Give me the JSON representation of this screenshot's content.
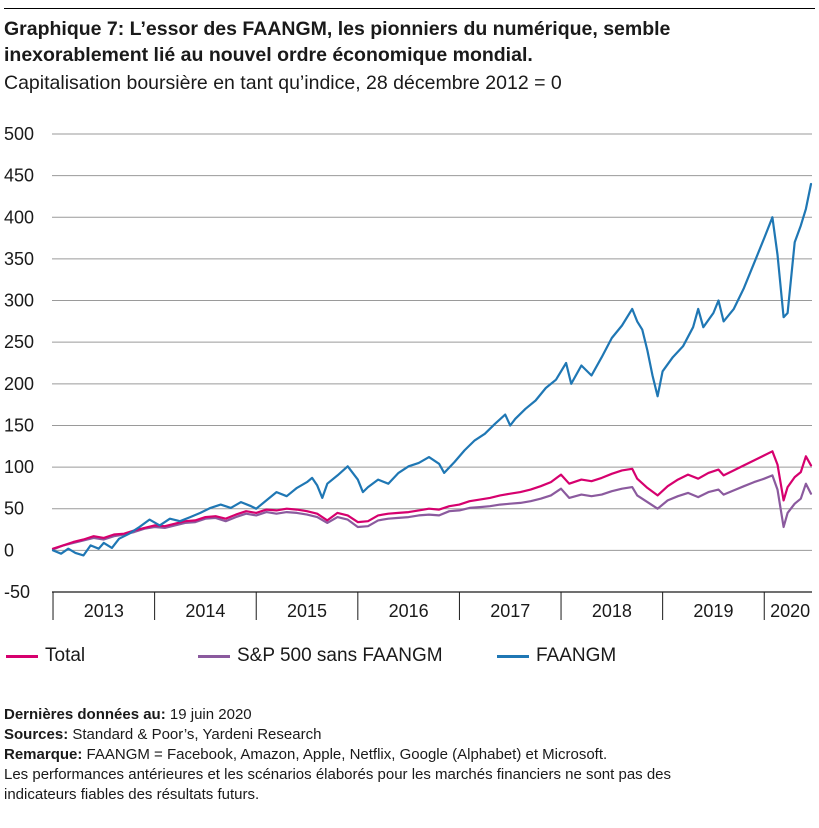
{
  "title": "Graphique 7: L’essor des FAANGM, les pionniers du numérique, semble inexorablement lié au nouvel ordre économique mondial.",
  "subtitle": "Capitalisation boursière en tant qu’indice, 28 décembre 2012 = 0",
  "notes": {
    "last_data_label": "Dernières données au:",
    "last_data_value": " 19 juin 2020",
    "sources_label": "Sources:",
    "sources_value": " Standard & Poor’s, Yardeni Research",
    "remark_label": "Remarque:",
    "remark_value": " FAANGM = Facebook, Amazon, Apple, Netflix, Google (Alphabet) et Microsoft.",
    "disclaimer_line1": "Les performances antérieures et les scénarios élaborés pour les marchés financiers ne sont pas des",
    "disclaimer_line2": "indicateurs fiables des résultats futurs."
  },
  "chart_data": {
    "type": "line",
    "x_unit": "year",
    "x_range": [
      2012.99,
      2020.47
    ],
    "ylim": [
      -50,
      500
    ],
    "yticks": [
      "-50",
      "0",
      "50",
      "100",
      "150",
      "200",
      "250",
      "300",
      "350",
      "400",
      "450",
      "500"
    ],
    "xticks": [
      "2013",
      "2014",
      "2015",
      "2016",
      "2017",
      "2018",
      "2019",
      "2020"
    ],
    "grid": true,
    "legend_position": "bottom",
    "series": [
      {
        "name": "Total",
        "color": "#d6006e",
        "points": [
          [
            2013.0,
            2
          ],
          [
            2013.1,
            6
          ],
          [
            2013.2,
            10
          ],
          [
            2013.3,
            13
          ],
          [
            2013.4,
            17
          ],
          [
            2013.5,
            15
          ],
          [
            2013.6,
            19
          ],
          [
            2013.7,
            20
          ],
          [
            2013.8,
            24
          ],
          [
            2013.9,
            27
          ],
          [
            2014.0,
            30
          ],
          [
            2014.1,
            29
          ],
          [
            2014.2,
            32
          ],
          [
            2014.3,
            35
          ],
          [
            2014.4,
            36
          ],
          [
            2014.5,
            40
          ],
          [
            2014.6,
            41
          ],
          [
            2014.7,
            38
          ],
          [
            2014.8,
            43
          ],
          [
            2014.9,
            47
          ],
          [
            2015.0,
            45
          ],
          [
            2015.1,
            49
          ],
          [
            2015.2,
            48
          ],
          [
            2015.3,
            50
          ],
          [
            2015.4,
            49
          ],
          [
            2015.5,
            47
          ],
          [
            2015.6,
            44
          ],
          [
            2015.7,
            36
          ],
          [
            2015.8,
            45
          ],
          [
            2015.9,
            42
          ],
          [
            2016.0,
            34
          ],
          [
            2016.1,
            35
          ],
          [
            2016.2,
            42
          ],
          [
            2016.3,
            44
          ],
          [
            2016.4,
            45
          ],
          [
            2016.5,
            46
          ],
          [
            2016.6,
            48
          ],
          [
            2016.7,
            50
          ],
          [
            2016.8,
            49
          ],
          [
            2016.9,
            53
          ],
          [
            2017.0,
            55
          ],
          [
            2017.1,
            59
          ],
          [
            2017.2,
            61
          ],
          [
            2017.3,
            63
          ],
          [
            2017.4,
            66
          ],
          [
            2017.5,
            68
          ],
          [
            2017.6,
            70
          ],
          [
            2017.7,
            73
          ],
          [
            2017.8,
            77
          ],
          [
            2017.9,
            82
          ],
          [
            2018.0,
            91
          ],
          [
            2018.08,
            80
          ],
          [
            2018.2,
            85
          ],
          [
            2018.3,
            83
          ],
          [
            2018.4,
            87
          ],
          [
            2018.5,
            92
          ],
          [
            2018.6,
            96
          ],
          [
            2018.7,
            98
          ],
          [
            2018.75,
            86
          ],
          [
            2018.85,
            75
          ],
          [
            2018.95,
            66
          ],
          [
            2019.05,
            77
          ],
          [
            2019.15,
            85
          ],
          [
            2019.25,
            91
          ],
          [
            2019.35,
            86
          ],
          [
            2019.45,
            93
          ],
          [
            2019.55,
            97
          ],
          [
            2019.6,
            90
          ],
          [
            2019.7,
            96
          ],
          [
            2019.8,
            102
          ],
          [
            2019.9,
            108
          ],
          [
            2020.0,
            114
          ],
          [
            2020.08,
            119
          ],
          [
            2020.13,
            103
          ],
          [
            2020.19,
            60
          ],
          [
            2020.23,
            76
          ],
          [
            2020.3,
            88
          ],
          [
            2020.36,
            94
          ],
          [
            2020.41,
            113
          ],
          [
            2020.46,
            102
          ]
        ]
      },
      {
        "name": "S&P 500 sans FAANGM",
        "color": "#8b5a9e",
        "points": [
          [
            2013.0,
            1
          ],
          [
            2013.1,
            6
          ],
          [
            2013.2,
            9
          ],
          [
            2013.3,
            12
          ],
          [
            2013.4,
            15
          ],
          [
            2013.5,
            13
          ],
          [
            2013.6,
            17
          ],
          [
            2013.7,
            19
          ],
          [
            2013.8,
            22
          ],
          [
            2013.9,
            26
          ],
          [
            2014.0,
            28
          ],
          [
            2014.1,
            27
          ],
          [
            2014.2,
            30
          ],
          [
            2014.3,
            33
          ],
          [
            2014.4,
            34
          ],
          [
            2014.5,
            38
          ],
          [
            2014.6,
            39
          ],
          [
            2014.7,
            35
          ],
          [
            2014.8,
            40
          ],
          [
            2014.9,
            44
          ],
          [
            2015.0,
            42
          ],
          [
            2015.1,
            46
          ],
          [
            2015.2,
            44
          ],
          [
            2015.3,
            46
          ],
          [
            2015.4,
            45
          ],
          [
            2015.5,
            43
          ],
          [
            2015.6,
            40
          ],
          [
            2015.7,
            33
          ],
          [
            2015.8,
            40
          ],
          [
            2015.9,
            37
          ],
          [
            2016.0,
            28
          ],
          [
            2016.1,
            29
          ],
          [
            2016.2,
            36
          ],
          [
            2016.3,
            38
          ],
          [
            2016.4,
            39
          ],
          [
            2016.5,
            40
          ],
          [
            2016.6,
            42
          ],
          [
            2016.7,
            43
          ],
          [
            2016.8,
            42
          ],
          [
            2016.9,
            47
          ],
          [
            2017.0,
            48
          ],
          [
            2017.1,
            51
          ],
          [
            2017.2,
            52
          ],
          [
            2017.3,
            53
          ],
          [
            2017.4,
            55
          ],
          [
            2017.5,
            56
          ],
          [
            2017.6,
            57
          ],
          [
            2017.7,
            59
          ],
          [
            2017.8,
            62
          ],
          [
            2017.9,
            66
          ],
          [
            2018.0,
            74
          ],
          [
            2018.08,
            63
          ],
          [
            2018.2,
            67
          ],
          [
            2018.3,
            65
          ],
          [
            2018.4,
            67
          ],
          [
            2018.5,
            71
          ],
          [
            2018.6,
            74
          ],
          [
            2018.7,
            76
          ],
          [
            2018.75,
            66
          ],
          [
            2018.85,
            58
          ],
          [
            2018.95,
            50
          ],
          [
            2019.05,
            60
          ],
          [
            2019.15,
            65
          ],
          [
            2019.25,
            69
          ],
          [
            2019.35,
            64
          ],
          [
            2019.45,
            70
          ],
          [
            2019.55,
            73
          ],
          [
            2019.6,
            67
          ],
          [
            2019.7,
            72
          ],
          [
            2019.8,
            77
          ],
          [
            2019.9,
            82
          ],
          [
            2020.0,
            86
          ],
          [
            2020.08,
            90
          ],
          [
            2020.13,
            73
          ],
          [
            2020.19,
            28
          ],
          [
            2020.23,
            45
          ],
          [
            2020.3,
            56
          ],
          [
            2020.36,
            62
          ],
          [
            2020.41,
            80
          ],
          [
            2020.46,
            68
          ]
        ]
      },
      {
        "name": "FAANGM",
        "color": "#1f77b4",
        "points": [
          [
            2013.0,
            0
          ],
          [
            2013.08,
            -4
          ],
          [
            2013.15,
            2
          ],
          [
            2013.22,
            -3
          ],
          [
            2013.3,
            -6
          ],
          [
            2013.37,
            6
          ],
          [
            2013.45,
            2
          ],
          [
            2013.5,
            9
          ],
          [
            2013.58,
            3
          ],
          [
            2013.65,
            14
          ],
          [
            2013.75,
            20
          ],
          [
            2013.85,
            28
          ],
          [
            2013.95,
            37
          ],
          [
            2014.05,
            30
          ],
          [
            2014.15,
            38
          ],
          [
            2014.25,
            35
          ],
          [
            2014.35,
            40
          ],
          [
            2014.45,
            45
          ],
          [
            2014.55,
            51
          ],
          [
            2014.65,
            55
          ],
          [
            2014.75,
            51
          ],
          [
            2014.85,
            58
          ],
          [
            2014.95,
            53
          ],
          [
            2015.0,
            50
          ],
          [
            2015.1,
            60
          ],
          [
            2015.2,
            70
          ],
          [
            2015.3,
            65
          ],
          [
            2015.4,
            75
          ],
          [
            2015.5,
            82
          ],
          [
            2015.55,
            87
          ],
          [
            2015.6,
            78
          ],
          [
            2015.65,
            63
          ],
          [
            2015.7,
            80
          ],
          [
            2015.8,
            90
          ],
          [
            2015.9,
            101
          ],
          [
            2016.0,
            85
          ],
          [
            2016.05,
            70
          ],
          [
            2016.1,
            76
          ],
          [
            2016.2,
            85
          ],
          [
            2016.3,
            80
          ],
          [
            2016.4,
            93
          ],
          [
            2016.5,
            101
          ],
          [
            2016.6,
            105
          ],
          [
            2016.7,
            112
          ],
          [
            2016.8,
            104
          ],
          [
            2016.85,
            93
          ],
          [
            2016.95,
            106
          ],
          [
            2017.05,
            120
          ],
          [
            2017.15,
            132
          ],
          [
            2017.25,
            140
          ],
          [
            2017.35,
            152
          ],
          [
            2017.45,
            163
          ],
          [
            2017.5,
            150
          ],
          [
            2017.55,
            158
          ],
          [
            2017.65,
            170
          ],
          [
            2017.75,
            180
          ],
          [
            2017.85,
            195
          ],
          [
            2017.95,
            205
          ],
          [
            2018.05,
            225
          ],
          [
            2018.1,
            200
          ],
          [
            2018.2,
            222
          ],
          [
            2018.3,
            210
          ],
          [
            2018.4,
            232
          ],
          [
            2018.5,
            255
          ],
          [
            2018.6,
            270
          ],
          [
            2018.7,
            290
          ],
          [
            2018.75,
            275
          ],
          [
            2018.8,
            265
          ],
          [
            2018.85,
            240
          ],
          [
            2018.9,
            210
          ],
          [
            2018.95,
            185
          ],
          [
            2019.0,
            215
          ],
          [
            2019.1,
            232
          ],
          [
            2019.2,
            245
          ],
          [
            2019.3,
            268
          ],
          [
            2019.35,
            290
          ],
          [
            2019.4,
            268
          ],
          [
            2019.5,
            285
          ],
          [
            2019.55,
            300
          ],
          [
            2019.6,
            275
          ],
          [
            2019.7,
            290
          ],
          [
            2019.8,
            315
          ],
          [
            2019.9,
            345
          ],
          [
            2020.0,
            375
          ],
          [
            2020.08,
            400
          ],
          [
            2020.13,
            355
          ],
          [
            2020.19,
            280
          ],
          [
            2020.23,
            285
          ],
          [
            2020.3,
            370
          ],
          [
            2020.36,
            390
          ],
          [
            2020.41,
            410
          ],
          [
            2020.46,
            440
          ]
        ]
      }
    ]
  }
}
